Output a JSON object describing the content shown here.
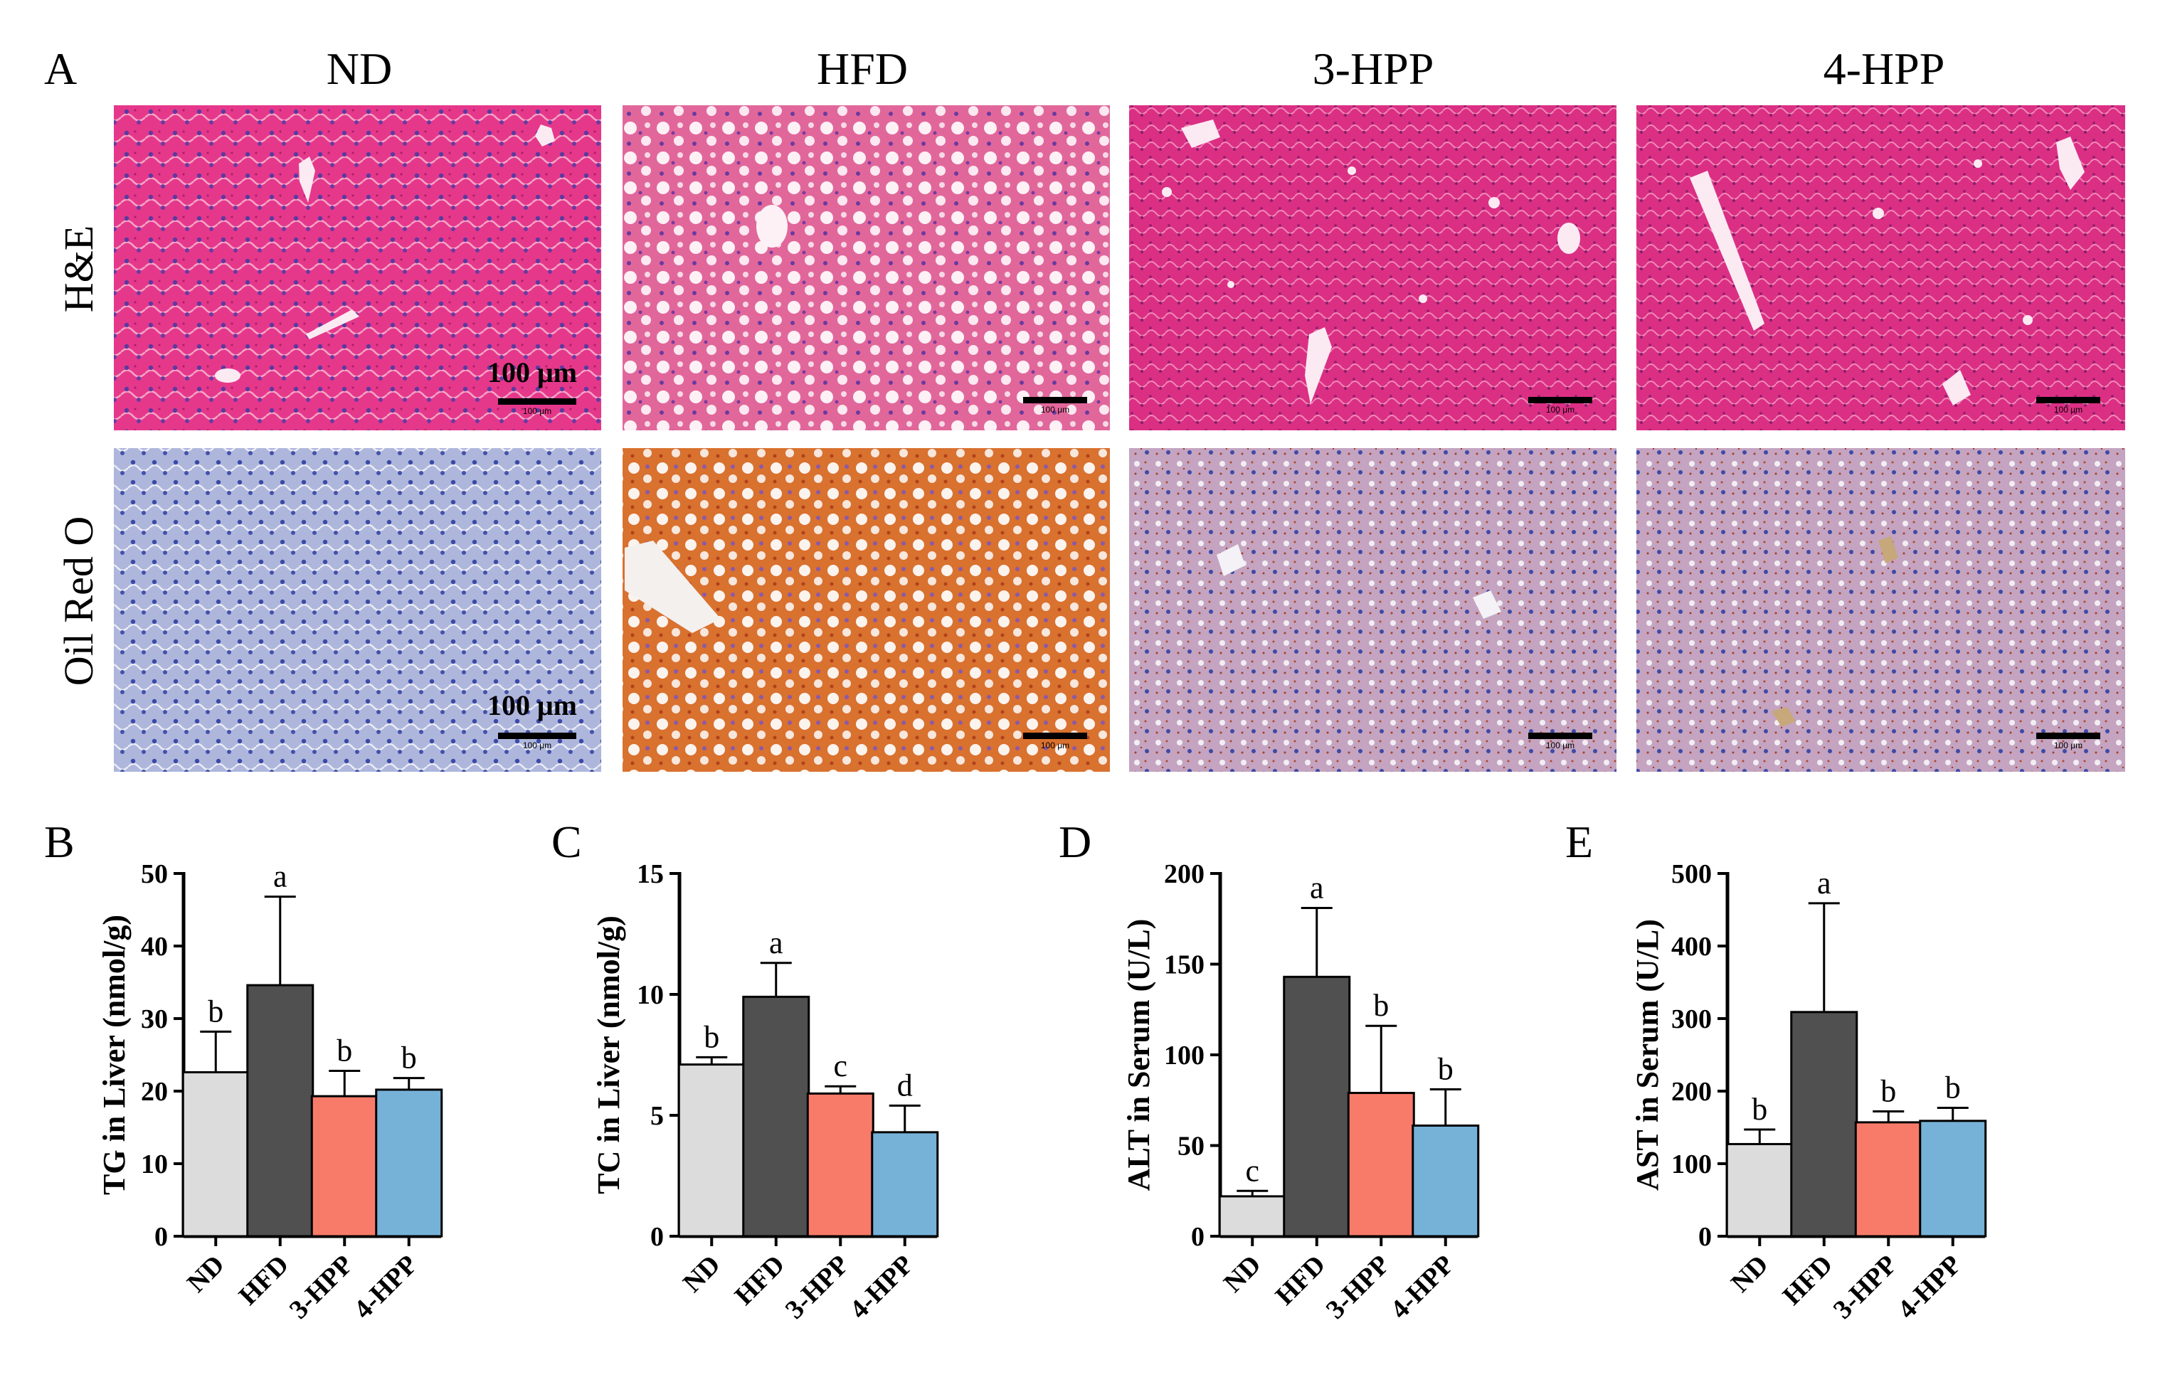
{
  "panel_a": {
    "letter": "A",
    "columns": [
      "ND",
      "HFD",
      "3-HPP",
      "4-HPP"
    ],
    "rows": [
      "H&E",
      "Oil Red O"
    ],
    "scale_bar_label": "100 μm",
    "scale_bar_small": "100 μm",
    "stain_colors": {
      "he_background": "#e6388c",
      "he_hfd_background": "#e0709e",
      "oro_background": "#a9b2da",
      "oro_lipid": "#d96a2a",
      "nuclei": "#3b4aa6"
    }
  },
  "chart_data": [
    {
      "type": "bar",
      "panel": "B",
      "categories": [
        "ND",
        "HFD",
        "3-HPP",
        "4-HPP"
      ],
      "values": [
        22.6,
        34.6,
        19.3,
        20.2
      ],
      "errors": [
        5.6,
        12.2,
        3.5,
        1.6
      ],
      "letters": [
        "b",
        "a",
        "b",
        "b"
      ],
      "ylabel": "TG in Liver (nmol/g)",
      "ylim": [
        0,
        50
      ],
      "yticks": [
        0,
        10,
        20,
        30,
        40,
        50
      ],
      "colors": [
        "#dcdcdc",
        "#505050",
        "#f87b6a",
        "#76b2d8"
      ]
    },
    {
      "type": "bar",
      "panel": "C",
      "categories": [
        "ND",
        "HFD",
        "3-HPP",
        "4-HPP"
      ],
      "values": [
        7.1,
        9.9,
        5.9,
        4.3
      ],
      "errors": [
        0.3,
        1.4,
        0.3,
        1.1
      ],
      "letters": [
        "b",
        "a",
        "c",
        "d"
      ],
      "ylabel": "TC in Liver (nmol/g)",
      "ylim": [
        0,
        15
      ],
      "yticks": [
        0,
        5,
        10,
        15
      ],
      "colors": [
        "#dcdcdc",
        "#505050",
        "#f87b6a",
        "#76b2d8"
      ]
    },
    {
      "type": "bar",
      "panel": "D",
      "categories": [
        "ND",
        "HFD",
        "3-HPP",
        "4-HPP"
      ],
      "values": [
        22,
        143,
        79,
        61
      ],
      "errors": [
        3,
        38,
        37,
        20
      ],
      "letters": [
        "c",
        "a",
        "b",
        "b"
      ],
      "ylabel": "ALT in Serum (U/L)",
      "ylim": [
        0,
        200
      ],
      "yticks": [
        0,
        50,
        100,
        150,
        200
      ],
      "colors": [
        "#dcdcdc",
        "#505050",
        "#f87b6a",
        "#76b2d8"
      ]
    },
    {
      "type": "bar",
      "panel": "E",
      "categories": [
        "ND",
        "HFD",
        "3-HPP",
        "4-HPP"
      ],
      "values": [
        127,
        309,
        157,
        159
      ],
      "errors": [
        20,
        150,
        15,
        18
      ],
      "letters": [
        "b",
        "a",
        "b",
        "b"
      ],
      "ylabel": "AST in Serum (U/L)",
      "ylim": [
        0,
        500
      ],
      "yticks": [
        0,
        100,
        200,
        300,
        400,
        500
      ],
      "colors": [
        "#dcdcdc",
        "#505050",
        "#f87b6a",
        "#76b2d8"
      ]
    }
  ]
}
